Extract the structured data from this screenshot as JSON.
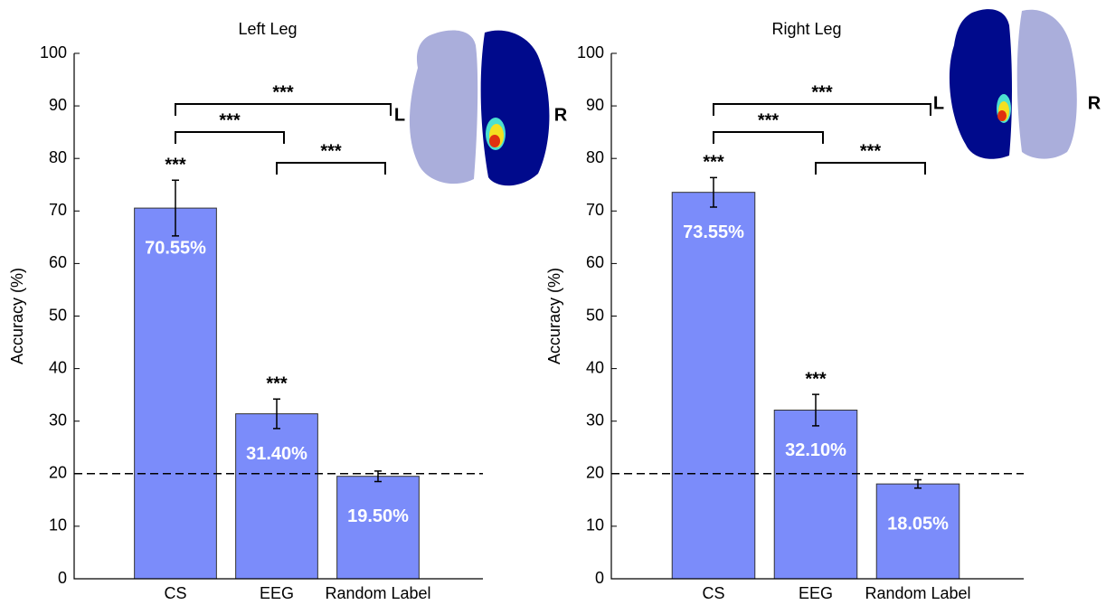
{
  "chart_data": [
    {
      "type": "bar",
      "title": "Left Leg",
      "y_label": "Accuracy (%)",
      "categories": [
        "CS",
        "EEG",
        "Random Label"
      ],
      "values": [
        70.55,
        31.4,
        19.5
      ],
      "value_labels": [
        "70.55%",
        "31.40%",
        "19.50%"
      ],
      "errors": [
        5.3,
        2.8,
        1.0
      ],
      "bar_annotations": [
        "***",
        "***",
        null
      ],
      "significance": [
        {
          "pair": [
            0,
            1
          ],
          "label": "***"
        },
        {
          "pair": [
            0,
            2
          ],
          "label": "***"
        },
        {
          "pair": [
            1,
            2
          ],
          "label": "***"
        }
      ],
      "reference_line": 20,
      "color": "#7b8cfa",
      "ylim": [
        0,
        100
      ],
      "yticks": [
        0,
        10,
        20,
        30,
        40,
        50,
        60,
        70,
        80,
        90,
        100
      ],
      "brain_labels": [
        "L",
        "R"
      ]
    },
    {
      "type": "bar",
      "title": "Right Leg",
      "y_label": "Accuracy (%)",
      "categories": [
        "CS",
        "EEG",
        "Random Label"
      ],
      "values": [
        73.55,
        32.1,
        18.05
      ],
      "value_labels": [
        "73.55%",
        "32.10%",
        "18.05%"
      ],
      "errors": [
        2.8,
        3.0,
        0.8
      ],
      "bar_annotations": [
        "***",
        "***",
        null
      ],
      "significance": [
        {
          "pair": [
            0,
            1
          ],
          "label": "***"
        },
        {
          "pair": [
            0,
            2
          ],
          "label": "***"
        },
        {
          "pair": [
            1,
            2
          ],
          "label": "***"
        }
      ],
      "reference_line": 20,
      "color": "#7b8cfa",
      "ylim": [
        0,
        100
      ],
      "yticks": [
        0,
        10,
        20,
        30,
        40,
        50,
        60,
        70,
        80,
        90,
        100
      ],
      "brain_labels": [
        "L",
        "R"
      ]
    }
  ]
}
